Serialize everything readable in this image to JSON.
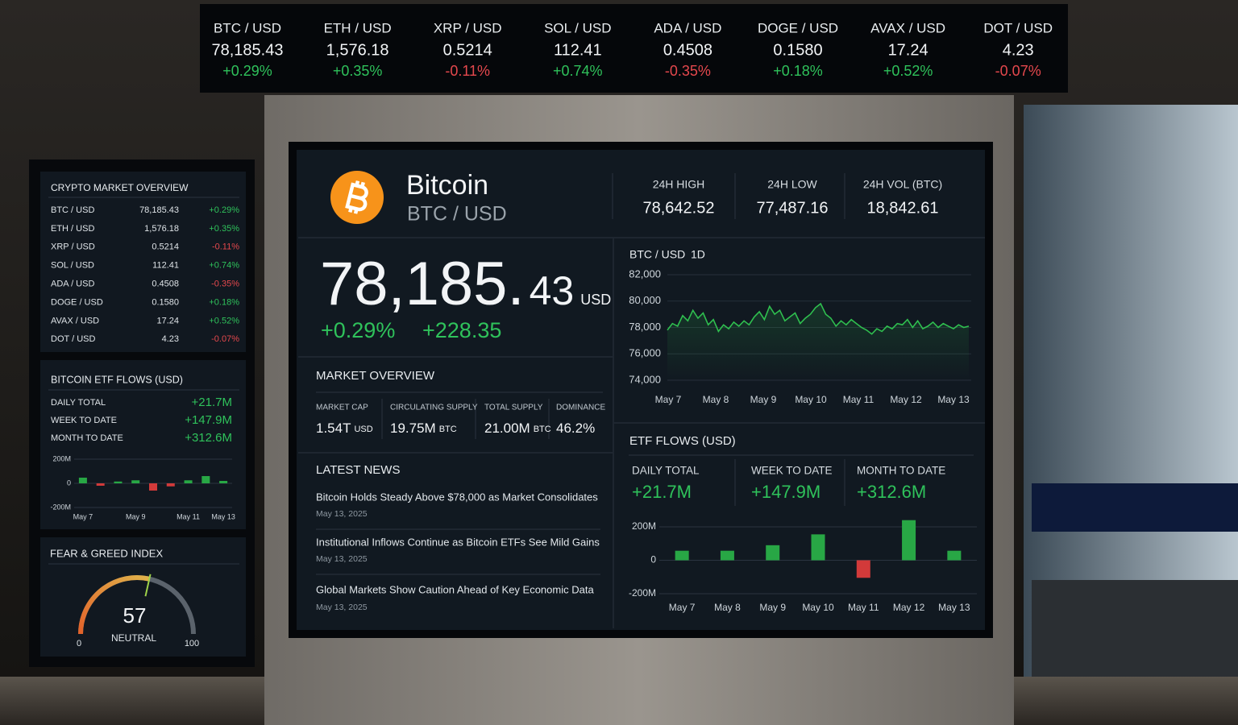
{
  "colors": {
    "up": "#2fc25b",
    "down": "#e5484d"
  },
  "ticker": [
    {
      "pair": "BTC / USD",
      "price": "78,185.43",
      "change": "+0.29%"
    },
    {
      "pair": "ETH / USD",
      "price": "1,576.18",
      "change": "+0.35%"
    },
    {
      "pair": "XRP / USD",
      "price": "0.5214",
      "change": "-0.11%"
    },
    {
      "pair": "SOL / USD",
      "price": "112.41",
      "change": "+0.74%"
    },
    {
      "pair": "ADA / USD",
      "price": "0.4508",
      "change": "-0.35%"
    },
    {
      "pair": "DOGE / USD",
      "price": "0.1580",
      "change": "+0.18%"
    },
    {
      "pair": "AVAX / USD",
      "price": "17.24",
      "change": "+0.52%"
    },
    {
      "pair": "DOT / USD",
      "price": "4.23",
      "change": "-0.07%"
    }
  ],
  "overview": {
    "title": "CRYPTO MARKET OVERVIEW",
    "rows": [
      [
        "BTC / USD",
        "78,185.43",
        "+0.29%"
      ],
      [
        "ETH / USD",
        "1,576.18",
        "+0.35%"
      ],
      [
        "XRP / USD",
        "0.5214",
        "-0.11%"
      ],
      [
        "SOL / USD",
        "112.41",
        "+0.74%"
      ],
      [
        "ADA / USD",
        "0.4508",
        "-0.35%"
      ],
      [
        "DOGE / USD",
        "0.1580",
        "+0.18%"
      ],
      [
        "AVAX / USD",
        "17.24",
        "+0.52%"
      ],
      [
        "DOT / USD",
        "4.23",
        "-0.07%"
      ]
    ]
  },
  "etf_summary": {
    "title": "BITCOIN ETF FLOWS (USD)",
    "stats": [
      {
        "label": "DAILY TOTAL",
        "value": "+21.7M"
      },
      {
        "label": "WEEK TO DATE",
        "value": "+147.9M"
      },
      {
        "label": "MONTH TO DATE",
        "value": "+312.6M"
      }
    ]
  },
  "fear_greed": {
    "title": "FEAR & GREED INDEX",
    "value": 57,
    "label": "NEUTRAL",
    "min": 0,
    "max": 100
  },
  "asset": {
    "name": "Bitcoin",
    "pair": "BTC / USD",
    "stats": [
      {
        "label": "24H HIGH",
        "value": "78,642.52"
      },
      {
        "label": "24H LOW",
        "value": "77,487.16"
      },
      {
        "label": "24H VOL (BTC)",
        "value": "18,842.61"
      }
    ],
    "price": "78,185.",
    "price_cents": "43",
    "currency": "USD",
    "change_pct": "+0.29%",
    "change_abs": "+228.35"
  },
  "market": {
    "title": "MARKET OVERVIEW",
    "items": [
      {
        "label": "MARKET CAP",
        "value": "1.54T",
        "unit": "USD"
      },
      {
        "label": "CIRCULATING SUPPLY",
        "value": "19.75M",
        "unit": "BTC"
      },
      {
        "label": "TOTAL SUPPLY",
        "value": "21.00M",
        "unit": "BTC"
      },
      {
        "label": "DOMINANCE",
        "value": "46.2%"
      }
    ]
  },
  "news": {
    "title": "LATEST NEWS",
    "items": [
      {
        "headline": "Bitcoin Holds Steady Above $78,000 as Market Consolidates",
        "date": "May 13, 2025"
      },
      {
        "headline": "Institutional Inflows Continue as Bitcoin ETFs See Mild Gains",
        "date": "May 13, 2025"
      },
      {
        "headline": "Global Markets Show Caution Ahead of Key Economic Data",
        "date": "May 13, 2025"
      }
    ]
  },
  "etf": {
    "title": "ETF FLOWS (USD)",
    "stats": [
      {
        "label": "DAILY TOTAL",
        "value": "+21.7M"
      },
      {
        "label": "WEEK TO DATE",
        "value": "+147.9M"
      },
      {
        "label": "MONTH TO DATE",
        "value": "+312.6M"
      }
    ]
  },
  "chart_data": [
    {
      "type": "line",
      "title": "BTC / USD",
      "subtitle": "1D",
      "xtick_labels": [
        "May 7",
        "May 8",
        "May 9",
        "May 10",
        "May 11",
        "May 12",
        "May 13"
      ],
      "values": [
        77800,
        78300,
        78100,
        78900,
        78500,
        79300,
        78700,
        79100,
        78200,
        78600,
        77700,
        78200,
        77900,
        78400,
        78100,
        78500,
        78200,
        78800,
        79200,
        78600,
        79600,
        79000,
        79300,
        78500,
        78800,
        79100,
        78300,
        78700,
        79000,
        79500,
        79800,
        79000,
        78700,
        78100,
        78500,
        78200,
        78600,
        78300,
        78000,
        77800,
        77500,
        77900,
        77700,
        78100,
        77900,
        78300,
        78200,
        78600,
        78000,
        78500,
        77900,
        78100,
        78400,
        78000,
        78300,
        78100,
        77900,
        78200,
        78000,
        78100
      ],
      "color": "#2fbf4f",
      "ylim": [
        74000,
        82000
      ],
      "yticks": [
        {
          "value": 74000,
          "label": "74,000"
        },
        {
          "value": 76000,
          "label": "76,000"
        },
        {
          "value": 78000,
          "label": "78,000"
        },
        {
          "value": 80000,
          "label": "80,000"
        },
        {
          "value": 82000,
          "label": "82,000"
        }
      ],
      "grid": true
    },
    {
      "type": "bar",
      "categories": [
        "May 7",
        "May 8",
        "May 9",
        "May 10",
        "May 11",
        "May 12",
        "May 13"
      ],
      "values": [
        57,
        57,
        90,
        155,
        -105,
        240,
        57
      ],
      "colors": {
        "positive": "#28a745",
        "negative": "#d23a3a"
      },
      "ylim": [
        -240,
        240
      ],
      "yticks": [
        {
          "value": -200,
          "label": "-200M"
        },
        0,
        {
          "value": 200,
          "label": "200M"
        }
      ],
      "grid": true
    },
    {
      "type": "bar",
      "categories": [
        "May 7",
        null,
        null,
        "May 9",
        null,
        null,
        "May 11",
        null,
        "May 13"
      ],
      "values": [
        47,
        -20,
        15,
        25,
        -60,
        -25,
        25,
        60,
        20
      ],
      "colors": {
        "positive": "#28a745",
        "negative": "#d23a3a"
      },
      "ylim": [
        -250,
        250
      ],
      "yticks": [
        {
          "value": -200,
          "label": "-200M"
        },
        0,
        {
          "value": 200,
          "label": "200M"
        }
      ],
      "grid": true
    }
  ]
}
